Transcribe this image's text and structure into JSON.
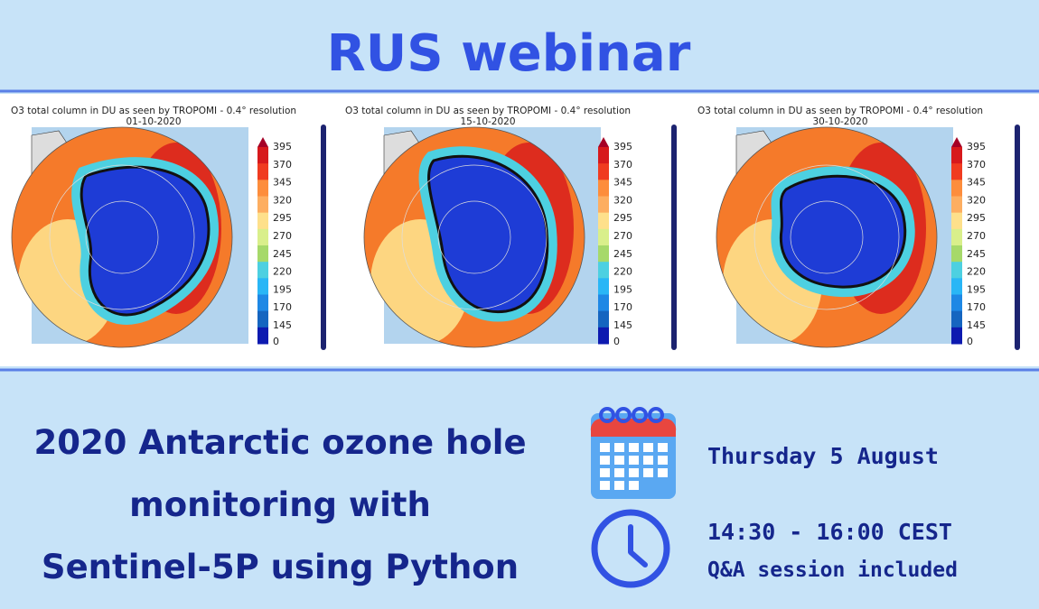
{
  "header": {
    "title": "RUS webinar"
  },
  "maps": [
    {
      "title": "O3 total column in DU as seen by TROPOMI - 0.4° resolution",
      "date": "01-10-2020",
      "colorbar_labels": [
        395,
        370,
        345,
        320,
        295,
        270,
        245,
        220,
        195,
        170,
        145,
        0
      ]
    },
    {
      "title": "O3 total column in DU as seen by TROPOMI - 0.4° resolution",
      "date": "15-10-2020",
      "colorbar_labels": [
        395,
        370,
        345,
        320,
        295,
        270,
        245,
        220,
        195,
        170,
        145,
        0
      ]
    },
    {
      "title": "O3 total column in DU as seen by TROPOMI - 0.4° resolution",
      "date": "30-10-2020",
      "colorbar_labels": [
        395,
        370,
        345,
        320,
        295,
        270,
        245,
        220,
        195,
        170,
        145,
        0
      ]
    }
  ],
  "headline": {
    "lines": [
      "2020 Antarctic ozone hole",
      "monitoring with",
      "Sentinel-5P using Python"
    ]
  },
  "schedule": {
    "date": "Thursday 5 August",
    "time": "14:30 - 16:00 CEST",
    "note": "Q&A session included"
  }
}
